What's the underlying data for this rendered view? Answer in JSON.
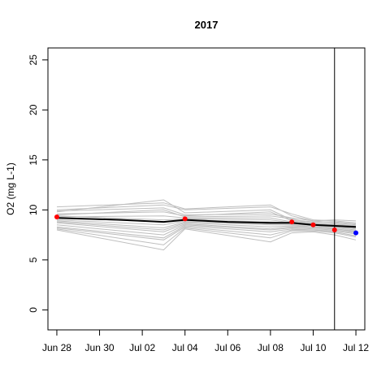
{
  "chart_data": {
    "type": "line",
    "title": "2017",
    "xlabel": "",
    "ylabel": "O2 (mg L-1)",
    "x_ticks": [
      {
        "date": "2017-06-28",
        "label": "Jun 28"
      },
      {
        "date": "2017-06-30",
        "label": "Jun 30"
      },
      {
        "date": "2017-07-02",
        "label": "Jul 02"
      },
      {
        "date": "2017-07-04",
        "label": "Jul 04"
      },
      {
        "date": "2017-07-06",
        "label": "Jul 06"
      },
      {
        "date": "2017-07-08",
        "label": "Jul 08"
      },
      {
        "date": "2017-07-10",
        "label": "Jul 10"
      },
      {
        "date": "2017-07-12",
        "label": "Jul 12"
      }
    ],
    "y_ticks": [
      0,
      5,
      10,
      15,
      20,
      25
    ],
    "xlim": [
      "2017-06-27T14:00",
      "2017-07-12T10:00"
    ],
    "ylim": [
      -2,
      26.2
    ],
    "grid": false,
    "legend": "none",
    "ensemble": {
      "color": "#bebebe",
      "x": [
        "2017-06-28",
        "2017-07-03",
        "2017-07-04",
        "2017-07-08",
        "2017-07-09",
        "2017-07-10",
        "2017-07-11",
        "2017-07-12"
      ],
      "members": [
        [
          10.3,
          10.7,
          10.1,
          10.5,
          9.4,
          8.9,
          9.0,
          8.9
        ],
        [
          10.0,
          10.5,
          10.0,
          10.3,
          9.6,
          9.0,
          8.9,
          8.7
        ],
        [
          9.8,
          11.0,
          9.7,
          10.0,
          9.0,
          8.8,
          8.8,
          8.6
        ],
        [
          9.9,
          10.2,
          9.5,
          9.6,
          9.2,
          8.9,
          8.7,
          8.5
        ],
        [
          9.6,
          9.8,
          9.4,
          9.8,
          8.9,
          8.7,
          8.6,
          8.4
        ],
        [
          9.5,
          10.0,
          9.3,
          9.4,
          9.1,
          8.6,
          8.5,
          8.4
        ],
        [
          9.3,
          9.4,
          9.2,
          9.2,
          8.8,
          8.6,
          8.5,
          8.3
        ],
        [
          9.4,
          9.0,
          9.1,
          9.0,
          8.7,
          8.5,
          8.4,
          8.3
        ],
        [
          9.2,
          8.8,
          9.0,
          8.8,
          8.7,
          8.5,
          8.3,
          8.2
        ],
        [
          9.0,
          8.5,
          8.9,
          8.6,
          8.6,
          8.4,
          8.3,
          8.1
        ],
        [
          8.9,
          8.2,
          8.8,
          8.5,
          8.5,
          8.3,
          8.2,
          8.0
        ],
        [
          8.8,
          8.0,
          8.7,
          8.3,
          8.4,
          8.3,
          8.1,
          7.9
        ],
        [
          8.7,
          7.8,
          8.6,
          8.1,
          8.3,
          8.2,
          8.1,
          7.8
        ],
        [
          8.5,
          7.5,
          8.5,
          8.0,
          8.2,
          8.1,
          8.0,
          7.7
        ],
        [
          8.3,
          7.2,
          8.4,
          7.8,
          8.1,
          8.0,
          7.9,
          7.6
        ],
        [
          8.2,
          7.0,
          8.3,
          7.5,
          8.0,
          8.0,
          7.8,
          7.4
        ],
        [
          8.1,
          6.5,
          8.2,
          7.2,
          7.9,
          7.9,
          7.7,
          7.3
        ],
        [
          8.0,
          6.0,
          8.1,
          6.8,
          7.7,
          7.8,
          7.5,
          7.0
        ]
      ]
    },
    "series": [
      {
        "color": "#000000",
        "x": [
          "2017-06-28",
          "2017-07-01",
          "2017-07-03",
          "2017-07-04",
          "2017-07-06",
          "2017-07-08",
          "2017-07-09",
          "2017-07-10",
          "2017-07-11",
          "2017-07-12"
        ],
        "values": [
          9.2,
          9.0,
          8.8,
          9.0,
          8.8,
          8.7,
          8.7,
          8.5,
          8.4,
          8.3
        ]
      }
    ],
    "observations": {
      "color": "#ff0000",
      "x": [
        "2017-06-28",
        "2017-07-04",
        "2017-07-09",
        "2017-07-10",
        "2017-07-11"
      ],
      "values": [
        9.3,
        9.1,
        8.8,
        8.5,
        8.0
      ]
    },
    "forecast_point": {
      "color": "#0000ff",
      "x": [
        "2017-07-12"
      ],
      "values": [
        7.7
      ]
    },
    "vertical_line": {
      "x": "2017-07-11",
      "color": "#000000"
    }
  }
}
